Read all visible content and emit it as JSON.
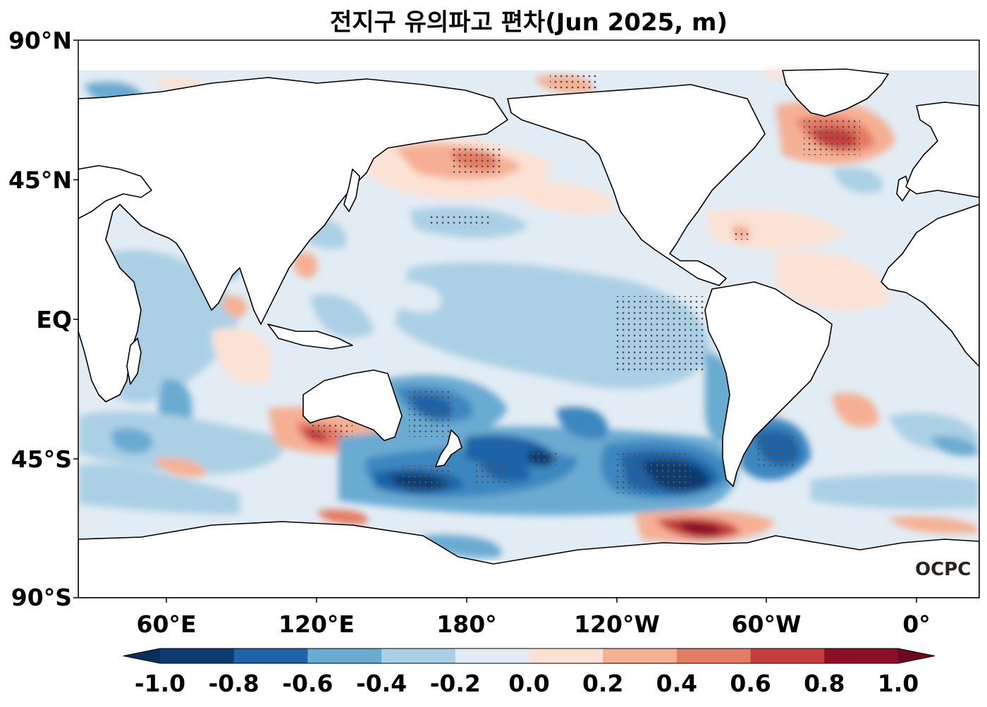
{
  "title": "전지구 유의파고 편차(Jun 2025, m)",
  "lat_labels": [
    "90°N",
    "45°N",
    "EQ",
    "45°S",
    "90°S"
  ],
  "lon_labels": [
    "60°E",
    "120°E",
    "180°",
    "120°W",
    "60°W",
    "0°"
  ],
  "logo": "OCPC",
  "colorbar": {
    "ticks": [
      "-1.0",
      "-0.8",
      "-0.6",
      "-0.4",
      "-0.2",
      "0.0",
      "0.2",
      "0.4",
      "0.6",
      "0.8",
      "1.0"
    ],
    "colors": [
      "#0b3a6e",
      "#1e64a8",
      "#3c87c0",
      "#6aabd2",
      "#abd0e5",
      "#e2ecf4",
      "#fbe2d4",
      "#f5b094",
      "#e47b63",
      "#c43d3c",
      "#8c0d26"
    ],
    "under_color": "#0a2f5c",
    "over_color": "#6b0a1f"
  },
  "anomaly_colors": {
    "ocean_base": "#e2ecf4",
    "land": "#ffffff",
    "coastline": "#000000",
    "stipple": "#555555"
  }
}
